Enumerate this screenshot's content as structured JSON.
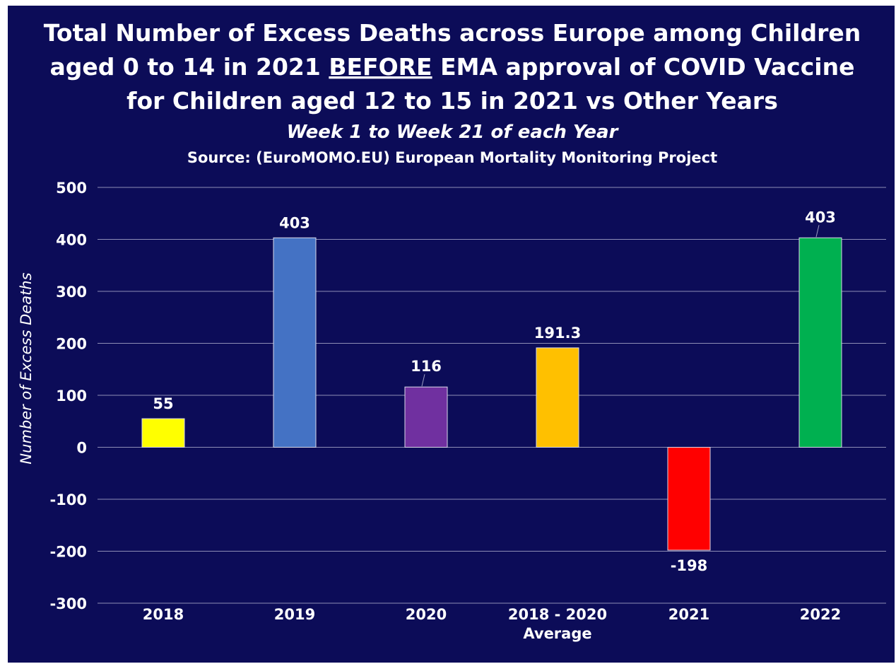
{
  "chart_data": {
    "type": "bar",
    "title_lines": [
      "Total Number of Excess Deaths across Europe among Children",
      {
        "before": "aged 0 to 14 in 2021 ",
        "emphasis": "BEFORE",
        "after": " EMA approval of COVID Vaccine"
      },
      "for Children aged 12 to 15 in 2021 vs Other Years"
    ],
    "subtitle": "Week 1 to Week 21 of each Year",
    "source": "Source: (EuroMOMO.EU) European Mortality Monitoring Project",
    "xlabel": "",
    "ylabel": "Number of Excess Deaths",
    "ylim": [
      -300,
      500
    ],
    "yticks": [
      500,
      400,
      300,
      200,
      100,
      0,
      -100,
      -200,
      -300
    ],
    "grid": true,
    "categories": [
      {
        "lines": [
          "2018"
        ]
      },
      {
        "lines": [
          "2019"
        ]
      },
      {
        "lines": [
          "2020"
        ]
      },
      {
        "lines": [
          "2018 - 2020",
          "Average"
        ]
      },
      {
        "lines": [
          "2021"
        ]
      },
      {
        "lines": [
          "2022"
        ]
      }
    ],
    "values": [
      55,
      403,
      116,
      191.3,
      -198,
      403
    ],
    "value_labels": [
      "55",
      "403",
      "116",
      "191.3",
      "-198",
      "403"
    ],
    "colors": [
      "#ffff00",
      "#4472c4",
      "#7030a0",
      "#ffc000",
      "#ff0000",
      "#00b050"
    ],
    "background": "#0c0c58",
    "text_color": "#ffffff",
    "grid_color": "#8e8eb6"
  }
}
